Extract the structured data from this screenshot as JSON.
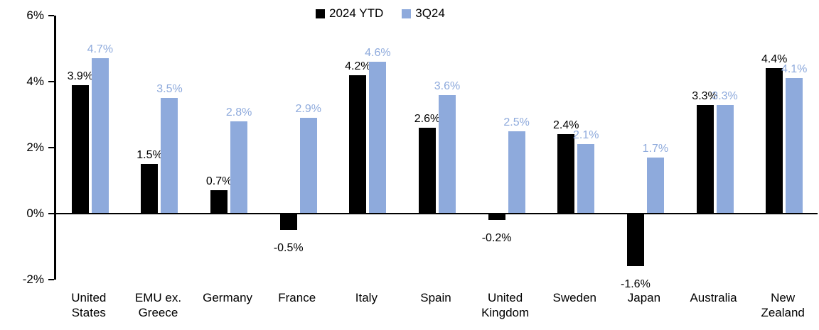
{
  "chart_data": {
    "type": "bar",
    "title": "",
    "xlabel": "",
    "ylabel": "",
    "categories": [
      "United States",
      "EMU ex. Greece",
      "Germany",
      "France",
      "Italy",
      "Spain",
      "United Kingdom",
      "Sweden",
      "Japan",
      "Australia",
      "New Zealand"
    ],
    "series": [
      {
        "name": "2024 YTD",
        "color": "#000000",
        "values": [
          3.9,
          1.5,
          0.7,
          -0.5,
          4.2,
          2.6,
          -0.2,
          2.4,
          -1.6,
          3.3,
          4.4
        ],
        "labels": [
          "3.9%",
          "1.5%",
          "0.7%",
          "-0.5%",
          "4.2%",
          "2.6%",
          "-0.2%",
          "2.4%",
          "-1.6%",
          "3.3%",
          "4.4%"
        ]
      },
      {
        "name": "3Q24",
        "color": "#8EAADC",
        "values": [
          4.7,
          3.5,
          2.8,
          2.9,
          4.6,
          3.6,
          2.5,
          2.1,
          1.7,
          3.3,
          4.1
        ],
        "labels": [
          "4.7%",
          "3.5%",
          "2.8%",
          "2.9%",
          "4.6%",
          "3.6%",
          "2.5%",
          "2.1%",
          "1.7%",
          "3.3%",
          "4.1%"
        ]
      }
    ],
    "ylim": [
      -2,
      6
    ],
    "yticks": [
      {
        "value": 6,
        "label": "6%"
      },
      {
        "value": 4,
        "label": "4%"
      },
      {
        "value": 2,
        "label": "2%"
      },
      {
        "value": 0,
        "label": "0%"
      },
      {
        "value": -2,
        "label": "-2%"
      }
    ],
    "legend_position": "top-center",
    "grid": false,
    "zero_baseline": true,
    "colors": {
      "series_2024_ytd": "#000000",
      "series_3q24": "#8EAADC",
      "axis": "#000000",
      "background": "#FFFFFF"
    }
  }
}
